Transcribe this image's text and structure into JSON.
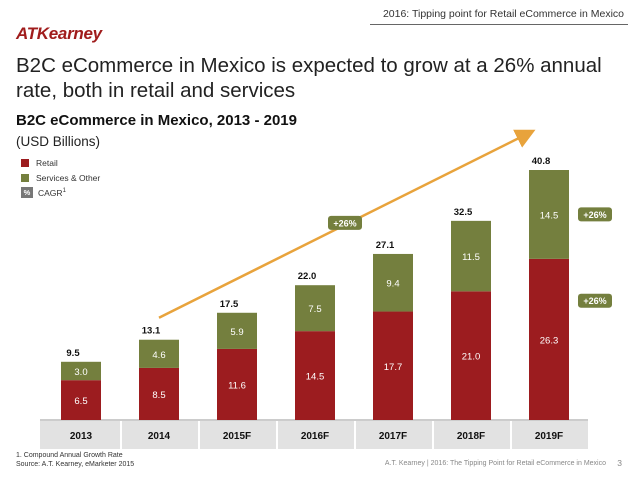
{
  "header": {
    "section_label": "2016: Tipping point for Retail eCommerce in Mexico",
    "logo_text": "ATKearney"
  },
  "headline": "B2C eCommerce in Mexico is expected to grow at a 26% annual rate, both in retail and services",
  "legend": {
    "retail": "Retail",
    "services": "Services & Other",
    "cagr_symbol": "%",
    "cagr_label": "CAGR",
    "cagr_sup": "1"
  },
  "colors": {
    "retail": "#9c1c1f",
    "services": "#747f3e",
    "badge": "#747f3e",
    "badge_text": "#ffffff",
    "arrow": "#e8a33c",
    "axis_band": "#e2e2e2"
  },
  "chart_data": {
    "type": "bar",
    "stacked": true,
    "title": "B2C eCommerce in Mexico, 2013 - 2019",
    "subtitle": "(USD Billions)",
    "categories": [
      "2013",
      "2014",
      "2015F",
      "2016F",
      "2017F",
      "2018F",
      "2019F"
    ],
    "series": [
      {
        "name": "Retail",
        "values": [
          6.5,
          8.5,
          11.6,
          14.5,
          17.7,
          21.0,
          26.3
        ],
        "labels": [
          "6.5",
          "8.5",
          "11.6",
          "14.5",
          "17.7",
          "21.0",
          "26.3"
        ]
      },
      {
        "name": "Services & Other",
        "values": [
          3.0,
          4.6,
          5.9,
          7.5,
          9.4,
          11.5,
          14.5
        ],
        "labels": [
          "3.0",
          "4.6",
          "5.9",
          "7.5",
          "9.4",
          "11.5",
          "14.5"
        ]
      }
    ],
    "totals": [
      "9.5",
      "13.1",
      "17.5",
      "22.0",
      "27.1",
      "32.5",
      "40.8"
    ],
    "ylim": [
      0,
      40.8
    ],
    "annotations": [
      {
        "label": "+26%",
        "type": "overall-cagr-arrow",
        "from_category": "2014",
        "to_category": "2019F"
      },
      {
        "label": "+26%",
        "type": "series-cagr",
        "series": "Services & Other"
      },
      {
        "label": "+26%",
        "type": "series-cagr",
        "series": "Retail"
      }
    ]
  },
  "footnote": {
    "note": "1.  Compound Annual Growth Rate",
    "source": "Source: A.T. Kearney, eMarketer 2015"
  },
  "footer": {
    "title": "A.T. Kearney  |  2016: The Tipping Point for Retail eCommerce in Mexico",
    "page": "3"
  }
}
